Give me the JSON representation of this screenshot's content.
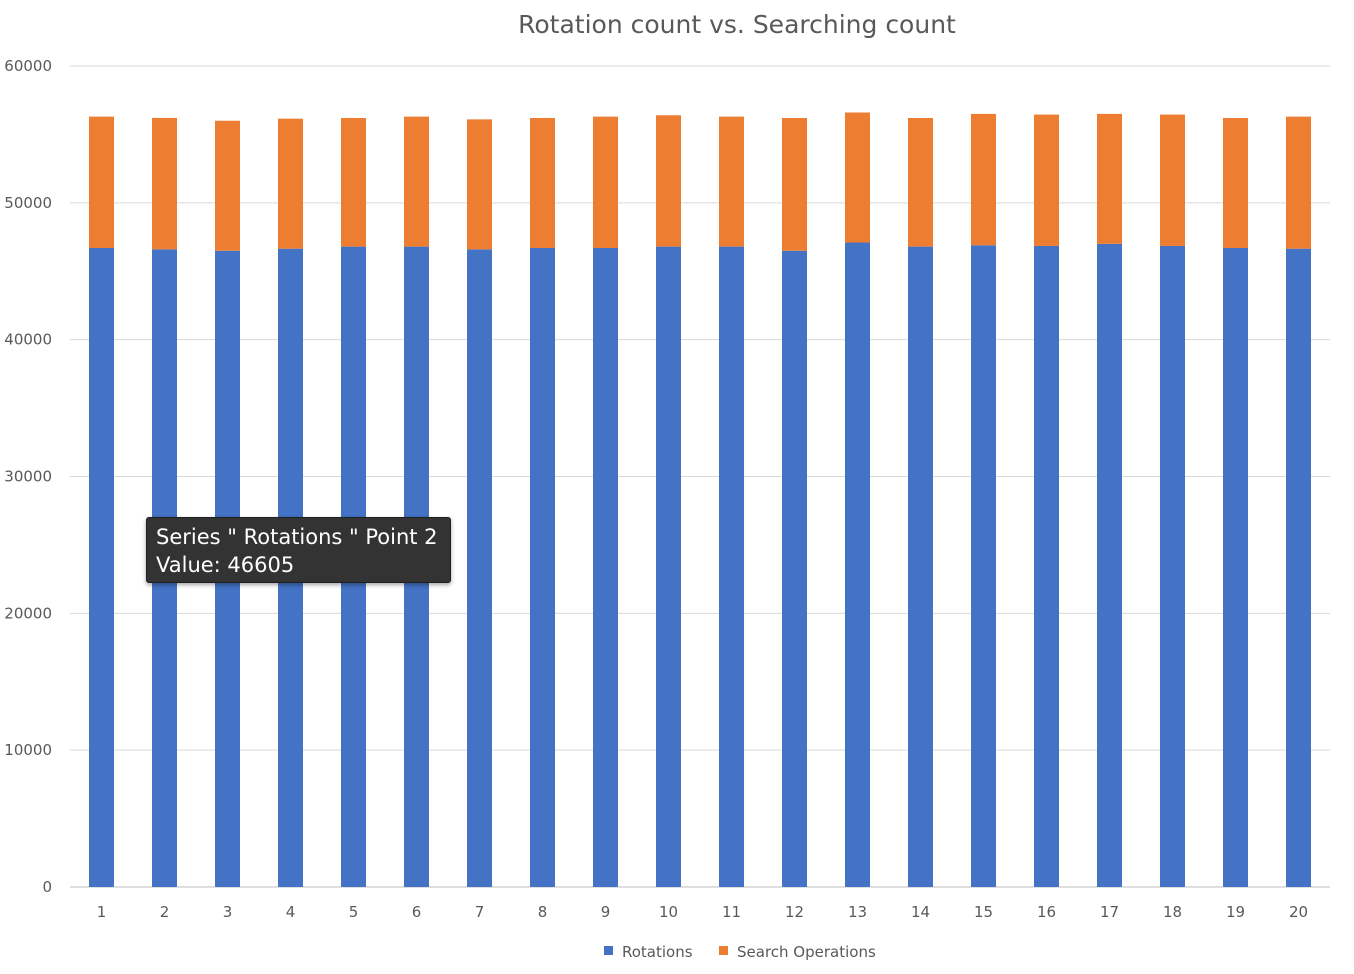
{
  "chart_data": {
    "type": "bar",
    "stacked": true,
    "title": "Rotation count vs. Searching count",
    "xlabel": "",
    "ylabel": "",
    "categories": [
      "1",
      "2",
      "3",
      "4",
      "5",
      "6",
      "7",
      "8",
      "9",
      "10",
      "11",
      "12",
      "13",
      "14",
      "15",
      "16",
      "17",
      "18",
      "19",
      "20"
    ],
    "series": [
      {
        "name": "Rotations",
        "color": "#4472C4",
        "values": [
          46700,
          46605,
          46500,
          46650,
          46800,
          46800,
          46600,
          46700,
          46700,
          46800,
          46800,
          46500,
          47100,
          46800,
          46900,
          46850,
          47000,
          46850,
          46700,
          46650
        ]
      },
      {
        "name": "Search Operations",
        "color": "#ED7D31",
        "values": [
          9600,
          9600,
          9500,
          9500,
          9400,
          9500,
          9500,
          9500,
          9600,
          9600,
          9500,
          9700,
          9500,
          9400,
          9600,
          9600,
          9500,
          9600,
          9500,
          9650
        ]
      }
    ],
    "ylim": [
      0,
      60000
    ],
    "yticks": [
      "0",
      "10000",
      "20000",
      "30000",
      "40000",
      "50000",
      "60000"
    ],
    "grid": true,
    "legend_position": "bottom"
  },
  "tooltip": {
    "line1": "Series \" Rotations \" Point 2",
    "line2": "Value: 46605"
  }
}
